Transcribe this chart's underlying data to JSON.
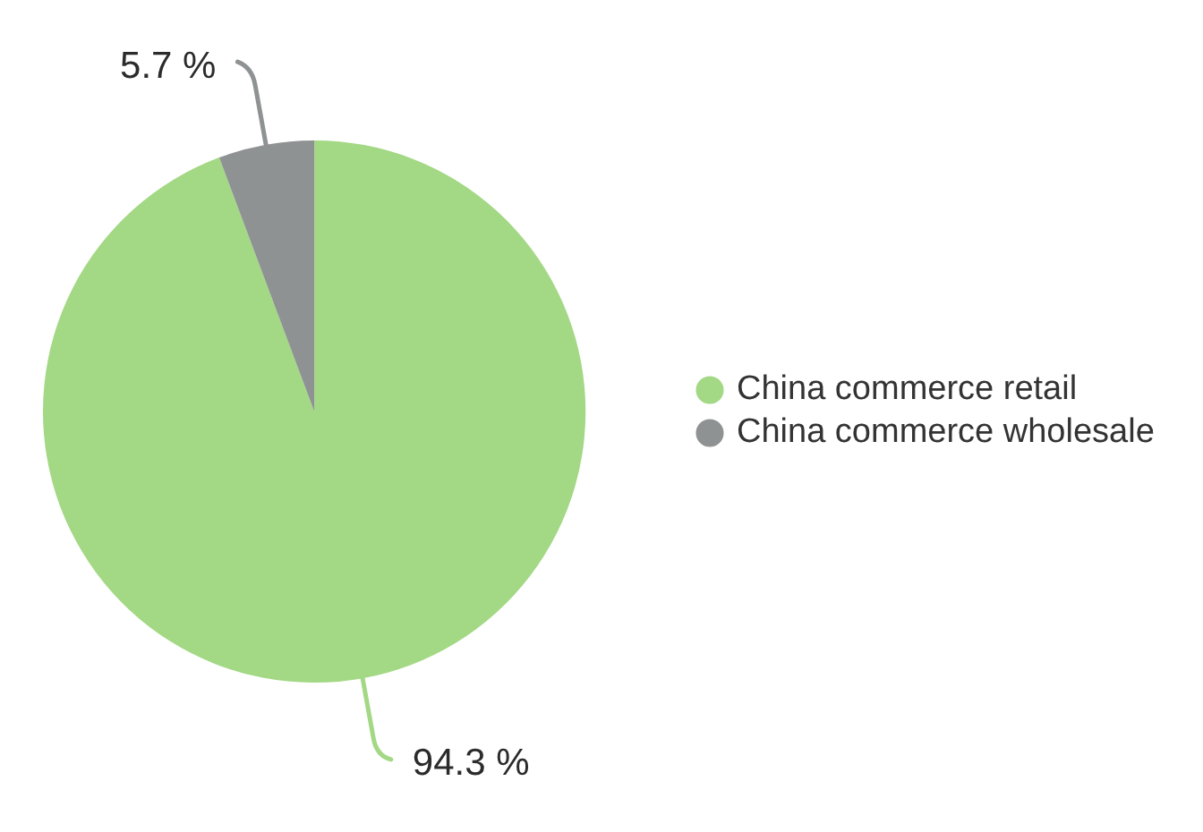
{
  "chart_data": {
    "type": "pie",
    "categories": [
      "China commerce retail",
      "China commerce wholesale"
    ],
    "values": [
      94.3,
      5.7
    ],
    "colors": [
      "#a3d884",
      "#8f9293"
    ],
    "value_labels": [
      "94.3 %",
      "5.7 %"
    ],
    "legend": "right"
  }
}
